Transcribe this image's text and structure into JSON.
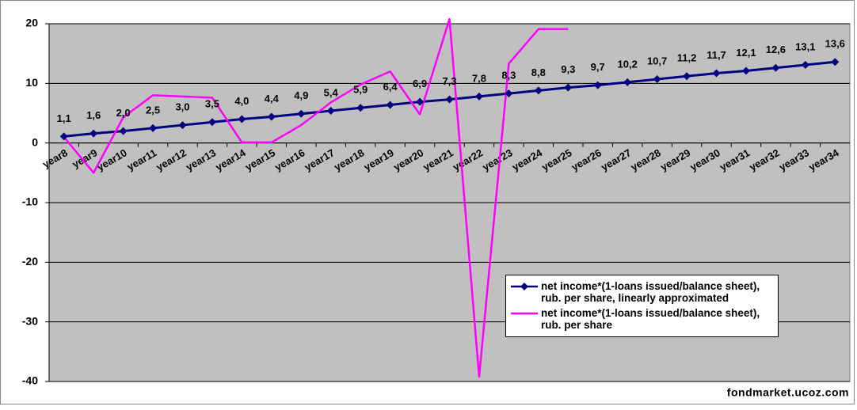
{
  "chart_data": {
    "type": "line",
    "categories": [
      "year8",
      "year9",
      "year10",
      "year11",
      "year12",
      "year13",
      "year14",
      "year15",
      "year16",
      "year17",
      "year18",
      "year19",
      "year20",
      "year21",
      "year22",
      "year23",
      "year24",
      "year25",
      "year26",
      "year27",
      "year28",
      "year29",
      "year30",
      "year31",
      "year32",
      "year33",
      "year34"
    ],
    "series": [
      {
        "name": "net income*(1-loans issued/balance sheet), rub. per share, linearly approximated",
        "color": "#000080",
        "marker": "diamond",
        "values": [
          1.1,
          1.6,
          2.0,
          2.5,
          3.0,
          3.5,
          4.0,
          4.4,
          4.9,
          5.4,
          5.9,
          6.4,
          6.9,
          7.3,
          7.8,
          8.3,
          8.8,
          9.3,
          9.7,
          10.2,
          10.7,
          11.2,
          11.7,
          12.1,
          12.6,
          13.1,
          13.6
        ],
        "value_labels": [
          "1,1",
          "1,6",
          "2,0",
          "2,5",
          "3,0",
          "3,5",
          "4,0",
          "4,4",
          "4,9",
          "5,4",
          "5,9",
          "6,4",
          "6,9",
          "7,3",
          "7,8",
          "8,3",
          "8,8",
          "9,3",
          "9,7",
          "10,2",
          "10,7",
          "11,2",
          "11,7",
          "12,1",
          "12,6",
          "13,1",
          "13,6"
        ]
      },
      {
        "name": "net income*(1-loans issued/balance sheet), rub. per share",
        "color": "#ff00ff",
        "values": [
          1.0,
          -5.0,
          4.3,
          8.0,
          7.8,
          7.6,
          0.1,
          0.1,
          3.0,
          6.8,
          9.8,
          12.0,
          4.8,
          20.8,
          -39.2,
          13.3,
          19.1,
          19.1,
          null,
          null,
          null,
          null,
          null,
          null,
          null,
          null,
          null
        ]
      }
    ],
    "ylim": [
      -40,
      20
    ],
    "yticks": [
      -40,
      -30,
      -20,
      -10,
      0,
      10,
      20
    ],
    "grid": true,
    "watermark": "fondmarket.ucoz.com"
  }
}
